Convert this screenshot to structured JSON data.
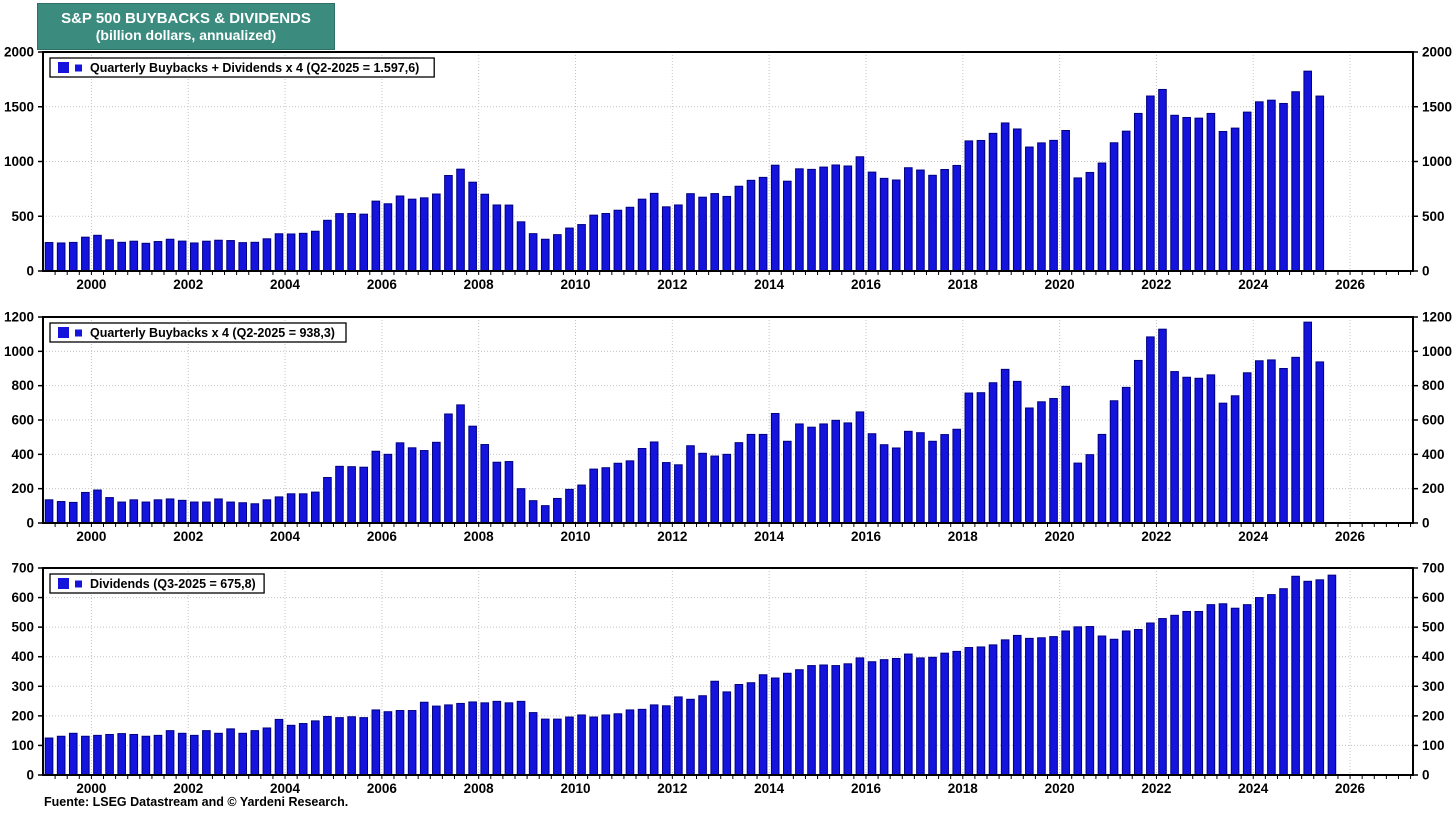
{
  "title": {
    "line1": "S&P 500 BUYBACKS & DIVIDENDS",
    "line2": "(billion dollars, annualized)"
  },
  "footer": "Fuente: LSEG Datastream and © Yardeni Research.",
  "colors": {
    "title_bg": "#3b8c7f",
    "title_text": "#ffffff",
    "bar_fill": "#1414dc",
    "bar_edge": "#000080",
    "axis": "#000000",
    "grid": "#c4c4c4",
    "label_text": "#000000"
  },
  "x_axis": {
    "start_year": 1999,
    "end_year": 2027,
    "year_labels": [
      "2000",
      "2002",
      "2004",
      "2006",
      "2008",
      "2010",
      "2012",
      "2014",
      "2016",
      "2018",
      "2020",
      "2022",
      "2024",
      "2026"
    ]
  },
  "chart_data": [
    {
      "type": "bar",
      "name": "buybacks-plus-dividends",
      "legend": "Quarterly Buybacks + Dividends x 4 (Q2-2025 = 1.597,6)",
      "start_quarter": "1999-Q1",
      "end_quarter": "2025-Q2",
      "ylim": [
        0,
        2000
      ],
      "yticks": [
        0,
        500,
        1000,
        1500,
        2000
      ],
      "grid": true,
      "legend_position": "top-left",
      "values": [
        260,
        256,
        261,
        309,
        326,
        285,
        262,
        272,
        253,
        269,
        290,
        273,
        256,
        272,
        281,
        278,
        259,
        262,
        294,
        340,
        338,
        344,
        363,
        463,
        524,
        525,
        519,
        638,
        614,
        685,
        656,
        668,
        703,
        872,
        930,
        811,
        701,
        603,
        602,
        449,
        341,
        290,
        332,
        392,
        424,
        510,
        525,
        555,
        582,
        656,
        709,
        586,
        603,
        706,
        674,
        707,
        681,
        774,
        828,
        855,
        966,
        820,
        933,
        928,
        949,
        968,
        959,
        1043,
        903,
        846,
        831,
        943,
        922,
        874,
        927,
        964,
        1188,
        1192,
        1257,
        1352,
        1297,
        1132,
        1170,
        1193,
        1283,
        850,
        900,
        986,
        1171,
        1277,
        1439,
        1598,
        1658,
        1422,
        1402,
        1396,
        1439,
        1274,
        1305,
        1451,
        1545,
        1560,
        1530,
        1637,
        1825,
        1597.6
      ]
    },
    {
      "type": "bar",
      "name": "buybacks",
      "legend": "Quarterly Buybacks x 4 (Q2-2025 = 938,3)",
      "start_quarter": "1999-Q1",
      "end_quarter": "2025-Q2",
      "ylim": [
        0,
        1200
      ],
      "yticks": [
        0,
        200,
        400,
        600,
        800,
        1000,
        1200
      ],
      "grid": true,
      "legend_position": "top-left",
      "values": [
        135,
        125,
        120,
        178,
        192,
        148,
        122,
        135,
        122,
        135,
        140,
        132,
        122,
        122,
        140,
        122,
        118,
        112,
        135,
        152,
        170,
        170,
        180,
        265,
        330,
        328,
        325,
        418,
        400,
        467,
        438,
        422,
        470,
        635,
        688,
        564,
        457,
        354,
        358,
        200,
        130,
        101,
        143,
        196,
        221,
        314,
        322,
        348,
        362,
        434,
        472,
        352,
        339,
        450,
        406,
        390,
        400,
        468,
        516,
        516,
        638,
        476,
        577,
        558,
        577,
        598,
        583,
        647,
        520,
        456,
        437,
        534,
        526,
        476,
        515,
        546,
        757,
        759,
        817,
        895,
        825,
        670,
        706,
        725,
        796,
        349,
        398,
        516,
        712,
        790,
        947,
        1084,
        1129,
        882,
        849,
        843,
        863,
        698,
        741,
        875,
        945,
        950,
        900,
        965,
        1170,
        938.3
      ]
    },
    {
      "type": "bar",
      "name": "dividends",
      "legend": "Dividends (Q3-2025 = 675,8)",
      "start_quarter": "1999-Q1",
      "end_quarter": "2025-Q3",
      "ylim": [
        0,
        700
      ],
      "yticks": [
        0,
        100,
        200,
        300,
        400,
        500,
        600,
        700
      ],
      "grid": true,
      "legend_position": "top-left",
      "values": [
        125,
        131,
        141,
        131,
        134,
        137,
        140,
        137,
        131,
        134,
        150,
        141,
        134,
        150,
        141,
        156,
        141,
        150,
        159,
        188,
        168,
        174,
        183,
        198,
        194,
        197,
        194,
        220,
        214,
        218,
        218,
        246,
        233,
        237,
        242,
        247,
        244,
        249,
        244,
        249,
        211,
        189,
        189,
        196,
        203,
        196,
        203,
        207,
        220,
        222,
        237,
        234,
        264,
        256,
        268,
        317,
        281,
        306,
        312,
        339,
        328,
        344,
        356,
        370,
        372,
        370,
        376,
        396,
        383,
        390,
        394,
        409,
        396,
        398,
        412,
        418,
        431,
        433,
        440,
        457,
        472,
        462,
        464,
        468,
        487,
        501,
        502,
        470,
        459,
        487,
        492,
        514,
        529,
        540,
        553,
        553,
        576,
        579,
        564,
        576,
        600,
        610,
        630,
        672,
        655,
        660,
        675.8
      ]
    }
  ]
}
